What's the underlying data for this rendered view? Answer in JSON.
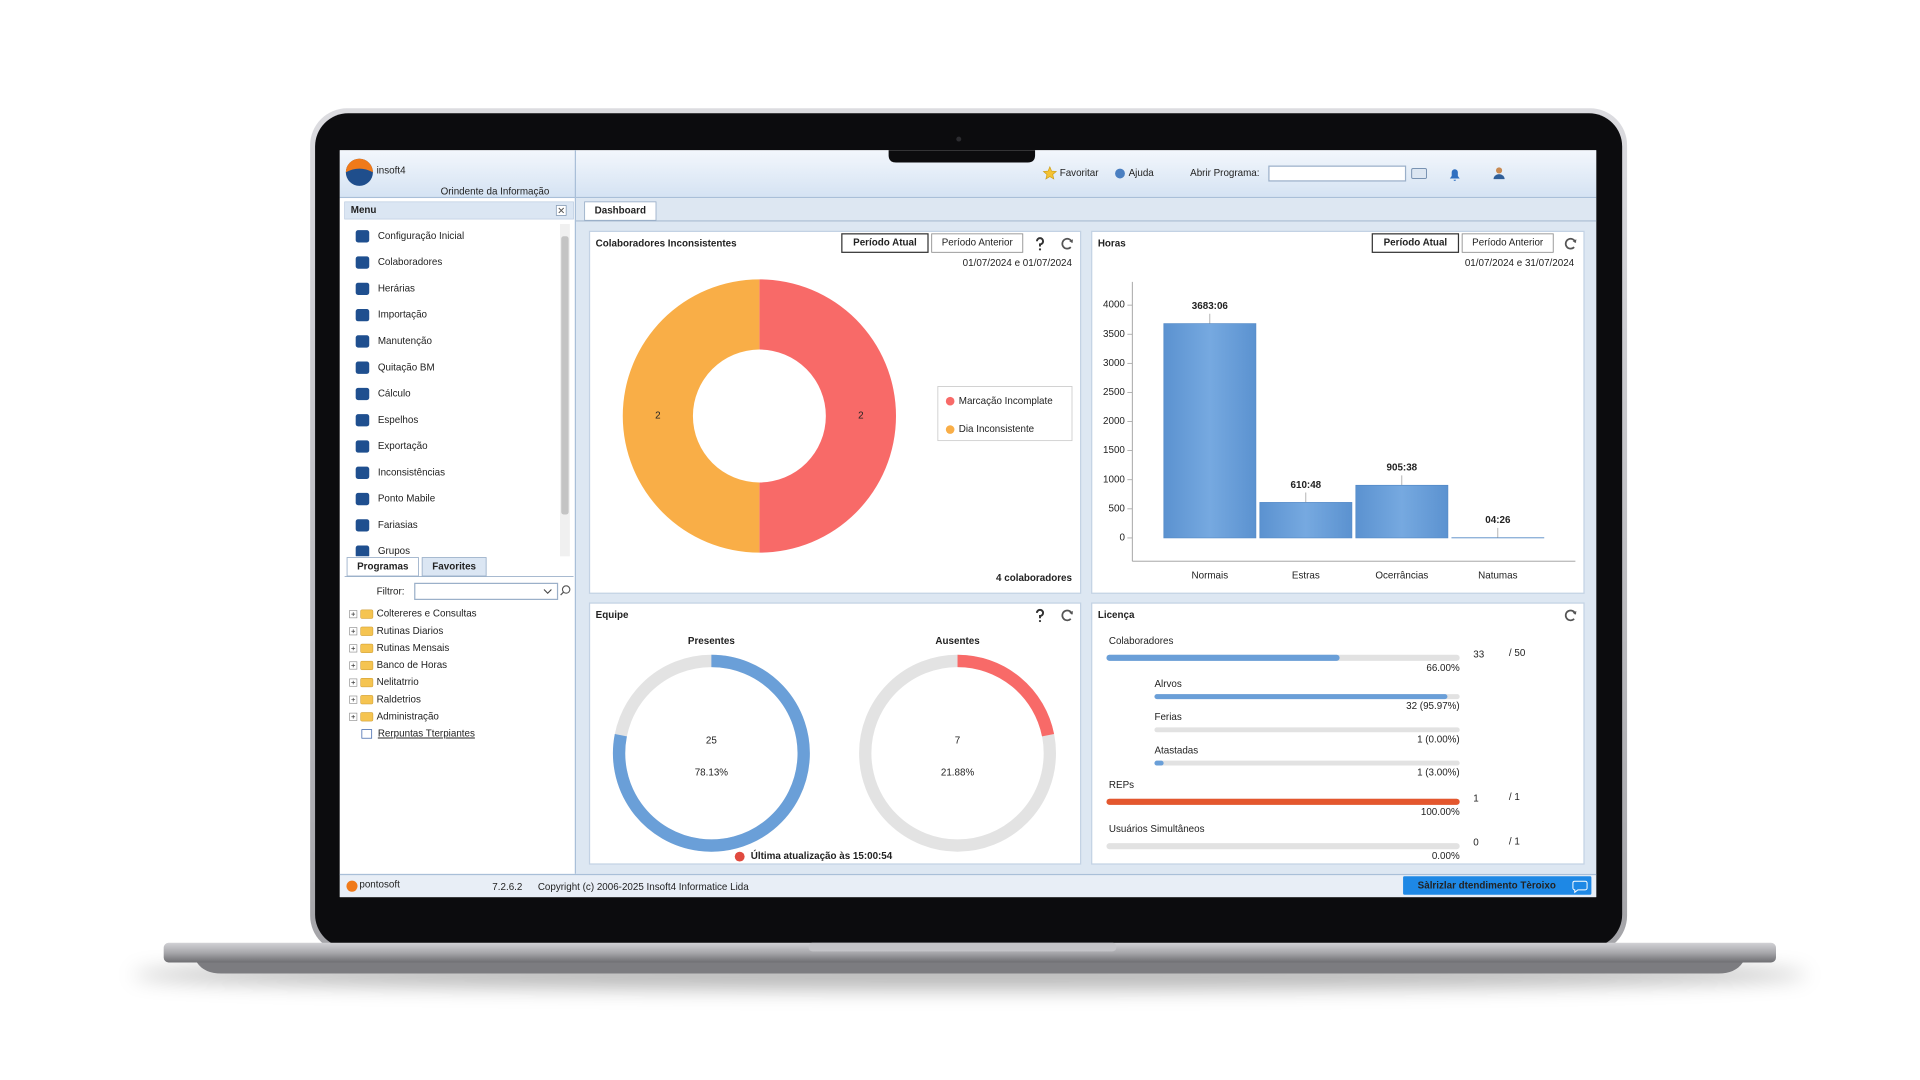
{
  "header": {
    "logo": "insoft4",
    "tagline": "Orindente da Informação",
    "favoritar": "Favoritar",
    "ajuda": "Ajuda",
    "abrir_programa": "Abrir Programa:"
  },
  "menu": {
    "title": "Menu",
    "items": [
      "Configuração Inicial",
      "Colaboradores",
      "Herárias",
      "Importação",
      "Manutenção",
      "Quitação BM",
      "Cálculo",
      "Espelhos",
      "Exportação",
      "Inconsistências",
      "Ponto Mabile",
      "Fariasias",
      "Grupos"
    ]
  },
  "side_tabs": [
    "Programas",
    "Favorites"
  ],
  "filter_label": "Filtror:",
  "tree": [
    "Coltereres e Consultas",
    "Rutinas Diarios",
    "Rutinas Mensais",
    "Banco de Horas",
    "Nelitatrrio",
    "Raldetrios",
    "Administração",
    "Rerpuntas Tterpiantes"
  ],
  "main_tab": "Dashboard",
  "chart_data": [
    {
      "type": "pie",
      "title": "Colaboradores Inconsistentes",
      "period_tabs": [
        "Período Atual",
        "Período Anterior"
      ],
      "date_range": "01/07/2024 e 01/07/2024",
      "categories": [
        "Marcação Incomplate",
        "Dia Inconsistente"
      ],
      "values": [
        2,
        2
      ],
      "colors": [
        "#f86a68",
        "#f9ae47"
      ],
      "donut": true,
      "legend": "right",
      "total": "4 colaboradores"
    },
    {
      "type": "bar",
      "title": "Horas",
      "period_tabs": [
        "Período Atual",
        "Período Anterior"
      ],
      "date_range": "01/07/2024 e 31/07/2024",
      "categories": [
        "Normais",
        "Estras",
        "Ocerrâncias",
        "Natumas"
      ],
      "values": [
        3683.1,
        610.8,
        905.6333,
        4.4333
      ],
      "value_labels": [
        "3683:06",
        "610:48",
        "905:38",
        "04:26"
      ],
      "color": "#6a9fd8",
      "ylim": [
        -400,
        4400
      ],
      "yticks": [
        0,
        500,
        1000,
        1500,
        2000,
        2500,
        3000,
        3500,
        4000
      ],
      "grid": false
    }
  ],
  "equipe": {
    "title": "Equipe",
    "groups": [
      {
        "name": "Presentes",
        "value": 25,
        "percent": "78.13%",
        "color": "#6a9fd8"
      },
      {
        "name": "Ausentes",
        "value": 7,
        "percent": "21.88%",
        "color": "#f86a68"
      }
    ],
    "updated": "Última atualização às 15:00:54"
  },
  "licenca": {
    "title": "Licença",
    "items": [
      {
        "name": "Colaboradores",
        "value": 33,
        "max": {
          "value": 50,
          "label": "/ 50"
        },
        "percent": "66.00%",
        "color": "#6a9fd8",
        "details": [
          {
            "name": "Alrvos",
            "value": 95.97,
            "label": "32 (95.97%)"
          },
          {
            "name": "Ferias",
            "value": 0,
            "label": "1 (0.00%)"
          },
          {
            "name": "Atastadas",
            "value": 3,
            "label": "1 (3.00%)"
          }
        ]
      },
      {
        "name": "REPs",
        "value": 1,
        "max": {
          "value": 1,
          "label": "/ 1"
        },
        "percent": "100.00%",
        "color": "#e4572e"
      },
      {
        "name": "Usuários Simultâneos",
        "value": 0,
        "max": {
          "value": 1,
          "label": "/ 1"
        },
        "percent": "0.00%",
        "color": "#6a9fd8"
      }
    ]
  },
  "footer": {
    "logo": "pontosoft",
    "version": "7.2.6.2",
    "copyright": "Copyright (c) 2006-2025 Insoft4 Informatice Lida",
    "button": "Sàlrizlar dtendimento Tèroixo"
  }
}
